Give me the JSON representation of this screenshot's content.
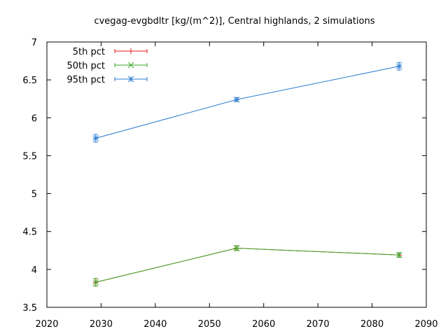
{
  "chart_data": {
    "type": "line",
    "title": "cvegag-evgbdltr [kg/(m^2)], Central highlands, 2 simulations",
    "xlabel": "",
    "ylabel": "",
    "xlim": [
      2020,
      2090
    ],
    "ylim": [
      3.5,
      7
    ],
    "x_ticks": [
      "2020",
      "2030",
      "2040",
      "2050",
      "2060",
      "2070",
      "2080",
      "2090"
    ],
    "y_ticks": [
      "3.5",
      "4",
      "4.5",
      "5",
      "5.5",
      "6",
      "6.5",
      "7"
    ],
    "grid": false,
    "legend_position": "top-left",
    "x": [
      2029,
      2055,
      2085
    ],
    "series": [
      {
        "name": "5th pct",
        "color": "#e41a1c",
        "marker": "plus",
        "values": [
          3.83,
          4.28,
          4.19
        ],
        "errors": [
          0.05,
          0.03,
          0.03
        ]
      },
      {
        "name": "50th pct",
        "color": "#3aaa28",
        "marker": "cross",
        "values": [
          3.83,
          4.28,
          4.19
        ],
        "errors": [
          0.05,
          0.03,
          0.03
        ]
      },
      {
        "name": "95th pct",
        "color": "#2b7bd0",
        "marker": "star",
        "values": [
          5.73,
          6.24,
          6.68
        ],
        "errors": [
          0.05,
          0.025,
          0.05
        ]
      }
    ]
  }
}
